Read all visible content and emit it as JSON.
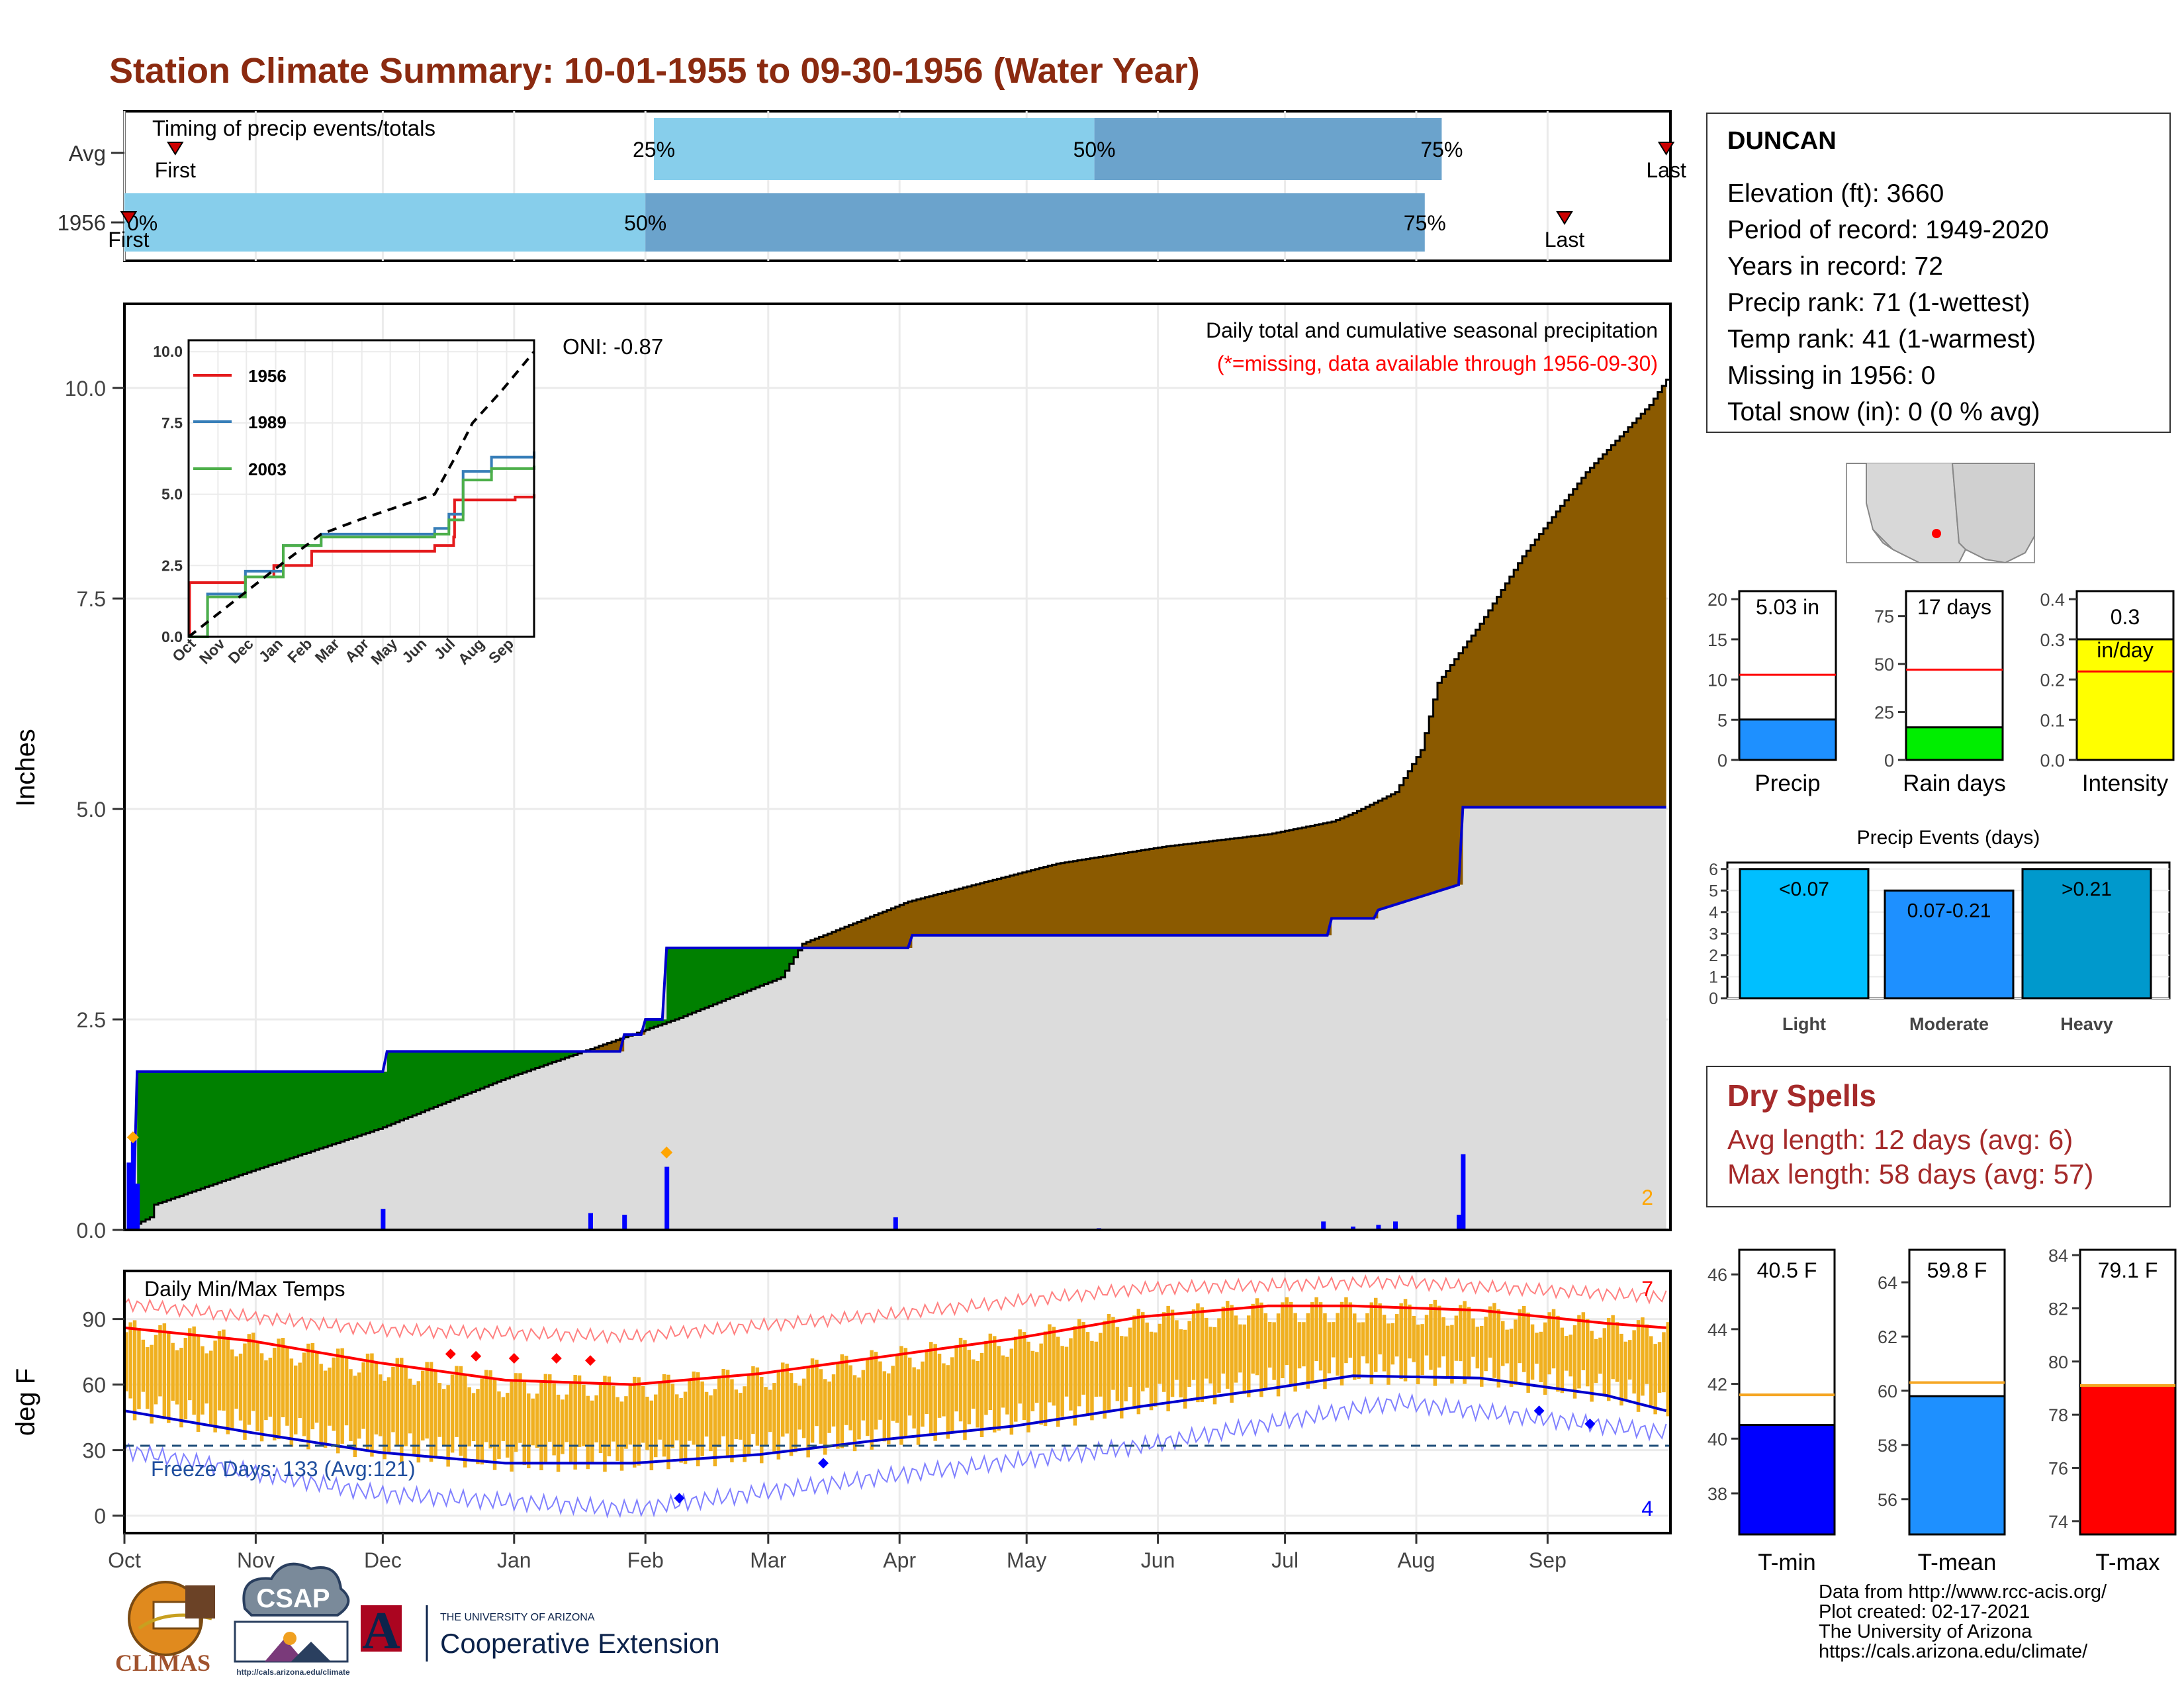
{
  "title": "Station Climate Summary: 10-01-1955 to 09-30-1956 (Water Year)",
  "colors": {
    "title": "#8b2a10",
    "cum_precip": "#8b5a00",
    "avg_cum": "#dcdcdc",
    "surplus": "#008000",
    "avg_line": "#0000cc",
    "daily_bar": "#0000ff",
    "temp_range": "#f0b020",
    "tmax_avg": "#ff0000",
    "tmin_avg": "#0000cc",
    "light_blue": "#87ceeb",
    "mid_blue": "#6ba3cc",
    "missing": "#ff0000",
    "rain_days": "#00ee00",
    "intensity": "#ffff00",
    "event_light": "#00bfff",
    "event_moderate": "#1e90ff",
    "event_heavy": "#0099cc"
  },
  "timing": {
    "label": "Timing of precip events/totals",
    "rows": [
      {
        "name": "Avg",
        "first_label": "First",
        "last_label": "Last",
        "p0": "",
        "p25": "25%",
        "p50": "50%",
        "p75": "75%",
        "first_day": 12,
        "d25": 125,
        "d50": 229,
        "d75": 311,
        "last_day": 364
      },
      {
        "name": "1956",
        "first_label": "First",
        "last_label": "Last",
        "p0": "0%",
        "p25": "",
        "p50": "50%",
        "p75": "75%",
        "first_day": 1,
        "d25": 1,
        "d50": 123,
        "d75": 307,
        "last_day": 340
      }
    ]
  },
  "months": [
    "Oct",
    "Nov",
    "Dec",
    "Jan",
    "Feb",
    "Mar",
    "Apr",
    "May",
    "Jun",
    "Jul",
    "Aug",
    "Sep"
  ],
  "precip_panel": {
    "ylabel": "Inches",
    "annotation_title": "Daily total and cumulative seasonal precipitation",
    "annotation_missing": "(*=missing, data available through 1956-09-30)",
    "oni": "ONI: -0.87",
    "count_label": "2"
  },
  "inset": {
    "legend": [
      "1956",
      "1989",
      "2003"
    ],
    "ylim": [
      0,
      10
    ],
    "yticks": [
      "0.0",
      "2.5",
      "5.0",
      "7.5",
      "10.0"
    ]
  },
  "temp_panel": {
    "label": "Daily Min/Max Temps",
    "ylabel": "deg F",
    "freeze_label": "Freeze Days: 133 (Avg:121)",
    "count_top": "7",
    "count_bottom": "4",
    "yticks": [
      "0",
      "30",
      "60",
      "90"
    ]
  },
  "station": {
    "name": "DUNCAN",
    "lines": [
      "Elevation (ft): 3660",
      "Period of record: 1949-2020",
      "Years in record: 72",
      "Precip rank: 71 (1-wettest)",
      "Temp rank: 41 (1-warmest)",
      "Missing in 1956: 0",
      "Total snow (in): 0 (0 % avg)"
    ]
  },
  "dry_spells": {
    "title": "Dry Spells",
    "avg_length": "Avg length: 12 days (avg: 6)",
    "max_length": "Max length: 58 days (avg: 57)"
  },
  "credits": [
    "Data from http://www.rcc-acis.org/",
    "Plot created: 02-17-2021",
    "The University of Arizona",
    "https://cals.arizona.edu/climate/"
  ],
  "logos": {
    "climas": "CLIMAS",
    "csap": "CSAP",
    "csap_url": "http://cals.arizona.edu/climate",
    "ua_small": "THE UNIVERSITY OF ARIZONA",
    "ua_big": "Cooperative Extension",
    "ua_letter": "A"
  },
  "chart_data": [
    {
      "type": "area",
      "title": "Daily total and cumulative seasonal precipitation",
      "ylabel": "Inches",
      "ylim": [
        0,
        11
      ],
      "yticks": [
        0,
        2.5,
        5,
        7.5,
        10
      ],
      "series": [
        {
          "name": "cumulative_1956",
          "x_day": [
            0,
            6,
            7,
            30,
            60,
            90,
            130,
            155,
            160,
            185,
            220,
            245,
            270,
            285,
            290,
            300,
            306,
            310,
            320,
            330,
            345,
            360,
            364
          ],
          "values": [
            0,
            0.15,
            0.3,
            0.7,
            1.2,
            1.8,
            2.5,
            3.0,
            3.4,
            3.9,
            4.35,
            4.55,
            4.7,
            4.85,
            4.95,
            5.2,
            5.7,
            6.5,
            7.2,
            8.0,
            9.0,
            9.8,
            10.1
          ]
        },
        {
          "name": "average_cumulative",
          "x_day": [
            0,
            2,
            3,
            61,
            62,
            110,
            111,
            117,
            118,
            122,
            123,
            127,
            128,
            185,
            186,
            284,
            285,
            295,
            296,
            315,
            316,
            364
          ],
          "values": [
            0,
            0,
            1.88,
            1.88,
            2.12,
            2.12,
            2.12,
            2.12,
            2.32,
            2.32,
            2.5,
            2.5,
            3.35,
            3.35,
            3.5,
            3.5,
            3.7,
            3.7,
            3.8,
            4.1,
            5.02,
            5.02
          ]
        }
      ],
      "daily_precip": [
        {
          "day": 1,
          "value": 0.8
        },
        {
          "day": 2,
          "value": 1.05
        },
        {
          "day": 3,
          "value": 0.55
        },
        {
          "day": 61,
          "value": 0.25
        },
        {
          "day": 110,
          "value": 0.2
        },
        {
          "day": 118,
          "value": 0.18
        },
        {
          "day": 128,
          "value": 0.75
        },
        {
          "day": 182,
          "value": 0.15
        },
        {
          "day": 230,
          "value": 0.02
        },
        {
          "day": 283,
          "value": 0.1
        },
        {
          "day": 290,
          "value": 0.04
        },
        {
          "day": 296,
          "value": 0.06
        },
        {
          "day": 300,
          "value": 0.1
        },
        {
          "day": 315,
          "value": 0.18
        },
        {
          "day": 316,
          "value": 0.9
        }
      ],
      "oni": -0.87
    },
    {
      "type": "line",
      "title": "",
      "ylim": [
        0,
        10
      ],
      "series": [
        {
          "name": "1956",
          "x": [
            0,
            1,
            60,
            90,
            130,
            260,
            280,
            281,
            345,
            365
          ],
          "values": [
            0,
            1.9,
            2.1,
            2.5,
            3.0,
            3.2,
            3.5,
            4.8,
            4.9,
            5.0
          ]
        },
        {
          "name": "1989",
          "x": [
            0,
            20,
            60,
            100,
            140,
            260,
            275,
            290,
            320,
            365
          ],
          "values": [
            0,
            1.5,
            2.3,
            3.2,
            3.6,
            3.8,
            4.3,
            5.8,
            6.3,
            6.5
          ]
        },
        {
          "name": "2003",
          "x": [
            0,
            20,
            60,
            100,
            140,
            260,
            275,
            290,
            320,
            365
          ],
          "values": [
            0,
            1.4,
            2.1,
            3.2,
            3.5,
            3.6,
            4.1,
            5.5,
            5.9,
            6.0
          ]
        },
        {
          "name": "average",
          "x": [
            0,
            50,
            100,
            140,
            180,
            260,
            280,
            300,
            330,
            365
          ],
          "values": [
            0,
            1.3,
            2.6,
            3.6,
            4.1,
            5.0,
            6.2,
            7.5,
            8.6,
            10.0
          ]
        }
      ]
    },
    {
      "type": "area",
      "title": "Daily Min/Max Temps",
      "ylabel": "deg F",
      "ylim": [
        -5,
        115
      ],
      "yticks": [
        0,
        30,
        60,
        90
      ],
      "series": [
        {
          "name": "avg_tmax",
          "x_day": [
            0,
            30,
            60,
            90,
            120,
            150,
            180,
            210,
            240,
            270,
            290,
            320,
            350,
            364
          ],
          "values": [
            86,
            80,
            70,
            62,
            60,
            65,
            73,
            81,
            91,
            96,
            96,
            94,
            88,
            86
          ]
        },
        {
          "name": "avg_tmin",
          "x_day": [
            0,
            30,
            60,
            90,
            120,
            150,
            180,
            210,
            240,
            270,
            290,
            320,
            350,
            364
          ],
          "values": [
            48,
            38,
            29,
            24,
            24,
            28,
            35,
            41,
            50,
            58,
            64,
            63,
            55,
            48
          ]
        },
        {
          "name": "record_high",
          "x_day": [
            0,
            60,
            120,
            180,
            240,
            300,
            364
          ],
          "values": [
            97,
            85,
            82,
            92,
            104,
            107,
            100
          ]
        },
        {
          "name": "record_low",
          "x_day": [
            0,
            60,
            120,
            180,
            240,
            300,
            364
          ],
          "values": [
            30,
            10,
            3,
            18,
            32,
            52,
            38
          ]
        }
      ],
      "freeze_line": 32,
      "freeze_days": 133,
      "freeze_days_avg": 121
    },
    {
      "type": "bar",
      "categories": [
        "Precip",
        "Rain days",
        "Intensity"
      ],
      "values": [
        5.03,
        17,
        0.3
      ],
      "labels": [
        "5.03 in",
        "17 days",
        "0.3 in/day"
      ],
      "averages": [
        10.6,
        47,
        0.22
      ],
      "ylims": [
        [
          0,
          21
        ],
        [
          0,
          88
        ],
        [
          0,
          0.42
        ]
      ]
    },
    {
      "type": "bar",
      "title": "Precip Events (days)",
      "categories": [
        "Light",
        "Moderate",
        "Heavy"
      ],
      "values": [
        6,
        5,
        6
      ],
      "labels": [
        "<0.07",
        "0.07-0.21",
        ">0.21"
      ],
      "ylim": [
        0,
        6.3
      ]
    },
    {
      "type": "bar",
      "categories": [
        "T-min",
        "T-mean",
        "T-max"
      ],
      "values": [
        40.5,
        59.8,
        79.1
      ],
      "labels": [
        "40.5 F",
        "59.8 F",
        "79.1 F"
      ],
      "averages": [
        41.6,
        60.3,
        79.1
      ],
      "ylims": [
        [
          36.5,
          46.9
        ],
        [
          54.7,
          65.2
        ],
        [
          73.5,
          84.2
        ]
      ],
      "yticks": [
        [
          38,
          40,
          42,
          44,
          46
        ],
        [
          56,
          58,
          60,
          62,
          64
        ],
        [
          74,
          76,
          78,
          80,
          82,
          84
        ]
      ]
    }
  ]
}
